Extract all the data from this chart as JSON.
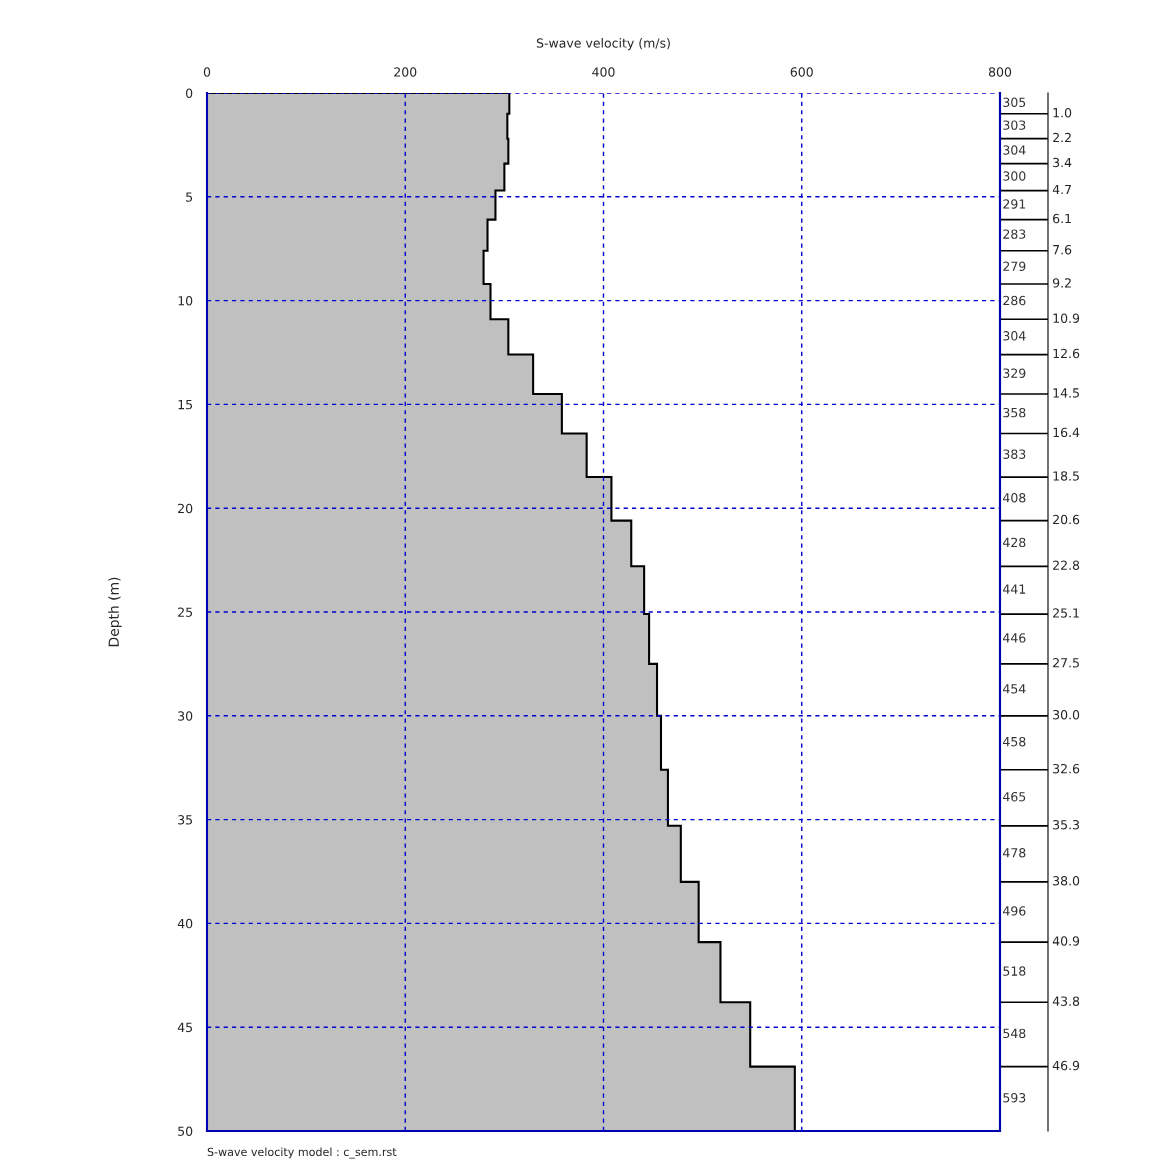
{
  "chart_data": {
    "type": "area",
    "orientation": "horizontal",
    "xlabel": "S-wave velocity (m/s)",
    "ylabel": "Depth (m)",
    "x": [
      0,
      1.0,
      2.2,
      3.4,
      4.7,
      6.1,
      7.6,
      9.2,
      10.9,
      12.6,
      14.5,
      16.4,
      18.5,
      20.6,
      22.8,
      25.1,
      27.5,
      30.0,
      32.6,
      35.3,
      38.0,
      40.9,
      43.8,
      46.9
    ],
    "series": [
      {
        "color": "#c0c0c0",
        "values": [
          305,
          303,
          304,
          300,
          291,
          283,
          279,
          286,
          304,
          329,
          358,
          383,
          408,
          428,
          441,
          446,
          454,
          458,
          465,
          478,
          496,
          518,
          548,
          593
        ]
      }
    ],
    "value_labels": [
      "305",
      "303",
      "304",
      "300",
      "291",
      "283",
      "279",
      "286",
      "304",
      "329",
      "358",
      "383",
      "408",
      "428",
      "441",
      "446",
      "454",
      "458",
      "465",
      "478",
      "496",
      "518",
      "548",
      "593"
    ],
    "xlim": [
      0,
      800
    ],
    "xticks": [
      0,
      200,
      400,
      600,
      800
    ],
    "ylim": [
      50,
      0
    ],
    "yticks": [
      0,
      5,
      10,
      15,
      20,
      25,
      30,
      35,
      40,
      45,
      50
    ],
    "y2lim": [
      50,
      0
    ],
    "y2ticks": [
      {
        "value": 1.0,
        "label": "1.0"
      },
      2.2,
      3.4,
      4.7,
      6.1,
      7.6,
      9.2,
      10.9,
      12.6,
      14.5,
      16.4,
      18.5,
      20.6,
      22.8,
      25.1,
      27.5,
      {
        "value": 30.0,
        "label": "30.0"
      },
      32.6,
      35.3,
      {
        "value": 38.0,
        "label": "38.0"
      },
      40.9,
      43.8,
      46.9
    ],
    "grid": true,
    "annotations": [
      "S-wave velocity model : c_sem.rst"
    ]
  }
}
